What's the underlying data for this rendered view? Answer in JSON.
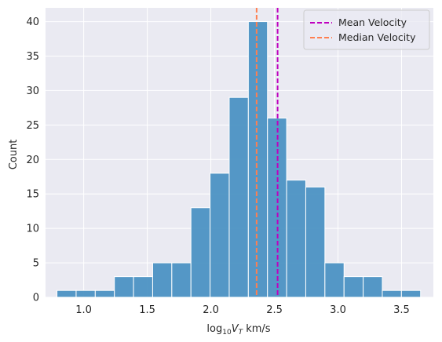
{
  "chart_data": {
    "type": "histogram",
    "title": "",
    "xlabel_prefix": "log",
    "xlabel_sub": "10",
    "xlabel_var": "V",
    "xlabel_var_sub": "T",
    "xlabel_unit": " km/s",
    "ylabel": "Count",
    "xlim": [
      0.7,
      3.75
    ],
    "ylim": [
      0,
      42
    ],
    "grid": true,
    "x_ticks": [
      1.0,
      1.5,
      2.0,
      2.5,
      3.0,
      3.5
    ],
    "x_tick_labels": [
      "1.0",
      "1.5",
      "2.0",
      "2.5",
      "3.0",
      "3.5"
    ],
    "y_ticks": [
      0,
      5,
      10,
      15,
      20,
      25,
      30,
      35,
      40
    ],
    "y_tick_labels": [
      "0",
      "5",
      "10",
      "15",
      "20",
      "25",
      "30",
      "35",
      "40"
    ],
    "bin_start": 0.79,
    "bin_width": 0.1505,
    "counts": [
      1,
      1,
      1,
      3,
      3,
      5,
      5,
      13,
      18,
      29,
      40,
      26,
      17,
      16,
      5,
      3,
      3,
      1,
      1
    ],
    "bar_color": "#4c92c3",
    "reference_lines": [
      {
        "name": "Mean Velocity",
        "x": 2.525,
        "color": "#bf00bf"
      },
      {
        "name": "Median Velocity",
        "x": 2.36,
        "color": "#ff7f50"
      }
    ],
    "legend_position": "top-right"
  }
}
